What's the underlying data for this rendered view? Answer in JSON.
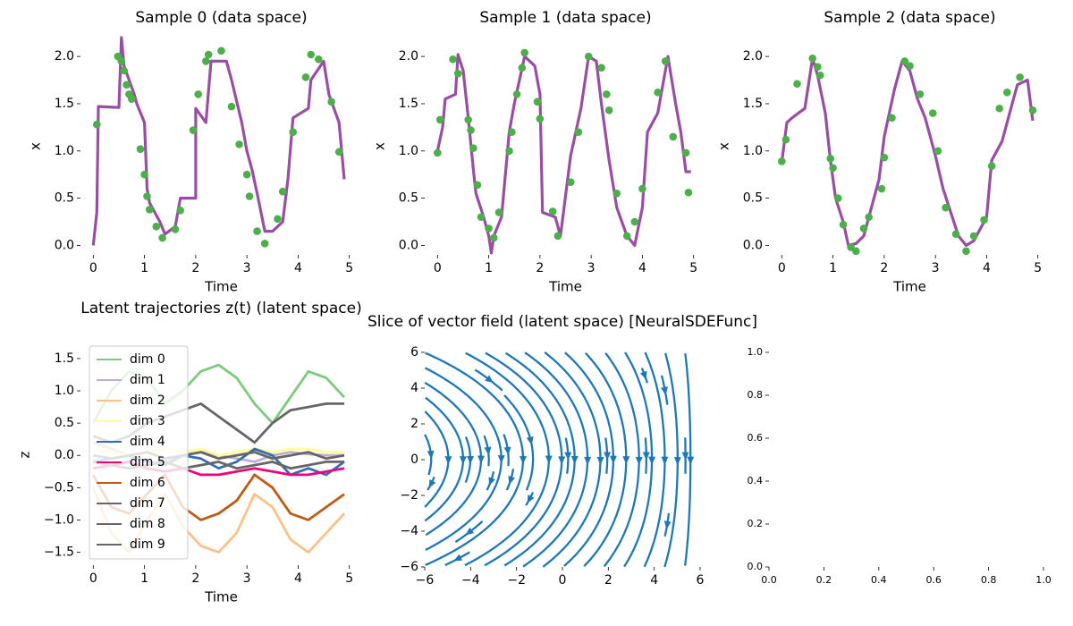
{
  "chart_data": [
    {
      "type": "line",
      "title": "Sample 0 (data space)",
      "xlabel": "Time",
      "ylabel": "x",
      "xlim": [
        -0.25,
        5.25
      ],
      "ylim": [
        -0.1,
        2.2
      ],
      "xticks": [
        0,
        1,
        2,
        3,
        4,
        5
      ],
      "yticks": [
        {
          "value": 0,
          "label": "0.0"
        },
        {
          "value": 0.5,
          "label": "0.5"
        },
        {
          "value": 1,
          "label": "1.0"
        },
        {
          "value": 1.5,
          "label": "1.5"
        },
        {
          "value": 2,
          "label": "2.0"
        }
      ],
      "series": [
        {
          "type": "line",
          "color": "#984ea3",
          "x": [
            0,
            0.07,
            0.1,
            0.5,
            0.55,
            0.6,
            0.7,
            0.8,
            0.85,
            1.0,
            1.05,
            1.1,
            1.3,
            1.4,
            1.6,
            1.7,
            1.8,
            2.0,
            2.0,
            2.2,
            2.3,
            2.6,
            2.7,
            2.9,
            3.0,
            3.1,
            3.2,
            3.35,
            3.5,
            3.7,
            3.8,
            3.9,
            4.2,
            4.25,
            4.5,
            4.6,
            4.8,
            4.9
          ],
          "values": [
            0,
            0.35,
            1.47,
            1.46,
            2.2,
            1.9,
            1.75,
            1.6,
            1.5,
            1.3,
            0.6,
            0.45,
            0.25,
            0.12,
            0.2,
            0.5,
            0.5,
            0.5,
            1.45,
            1.3,
            1.95,
            1.95,
            1.75,
            1.3,
            1.0,
            0.8,
            0.55,
            0.15,
            0.15,
            0.25,
            0.7,
            1.35,
            1.45,
            1.75,
            1.95,
            1.6,
            1.3,
            0.7
          ]
        },
        {
          "type": "scatter",
          "color": "#4daf4a",
          "x": [
            0.07,
            0.48,
            0.55,
            0.6,
            0.65,
            0.7,
            0.75,
            0.92,
            1.0,
            1.05,
            1.1,
            1.23,
            1.35,
            1.6,
            1.7,
            1.95,
            2.05,
            2.2,
            2.25,
            2.5,
            2.7,
            2.85,
            3.0,
            3.05,
            3.2,
            3.35,
            3.6,
            3.7,
            3.9,
            4.15,
            4.25,
            4.4,
            4.65,
            4.8
          ],
          "values": [
            1.28,
            2.0,
            1.95,
            1.85,
            1.7,
            1.6,
            1.55,
            1.02,
            0.75,
            0.52,
            0.38,
            0.2,
            0.08,
            0.17,
            0.37,
            1.22,
            1.6,
            1.95,
            2.02,
            2.06,
            1.47,
            1.07,
            0.75,
            0.52,
            0.15,
            0.02,
            0.28,
            0.57,
            1.2,
            1.78,
            2.02,
            1.97,
            1.52,
            0.99
          ]
        }
      ]
    },
    {
      "type": "line",
      "title": "Sample 1 (data space)",
      "xlabel": "Time",
      "ylabel": "x",
      "xlim": [
        -0.25,
        5.25
      ],
      "ylim": [
        -0.1,
        2.2
      ],
      "xticks": [
        0,
        1,
        2,
        3,
        4,
        5
      ],
      "yticks": [
        {
          "value": 0,
          "label": "0.0"
        },
        {
          "value": 0.5,
          "label": "0.5"
        },
        {
          "value": 1,
          "label": "1.0"
        },
        {
          "value": 1.5,
          "label": "1.5"
        },
        {
          "value": 2,
          "label": "2.0"
        }
      ],
      "series": [
        {
          "type": "line",
          "color": "#984ea3",
          "x": [
            0,
            0.1,
            0.15,
            0.35,
            0.4,
            0.5,
            0.6,
            0.7,
            0.75,
            0.9,
            1.0,
            1.05,
            1.1,
            1.25,
            1.4,
            1.5,
            1.7,
            1.9,
            2.0,
            2.05,
            2.3,
            2.4,
            2.6,
            2.8,
            2.95,
            3.1,
            3.2,
            3.35,
            3.5,
            3.7,
            3.85,
            4.0,
            4.1,
            4.3,
            4.5,
            4.65,
            4.75,
            4.85,
            4.95
          ],
          "values": [
            1.0,
            1.25,
            1.55,
            1.6,
            2.02,
            1.85,
            1.35,
            0.8,
            0.55,
            0.3,
            0.1,
            -0.08,
            0.1,
            0.3,
            1.2,
            1.5,
            2.0,
            1.9,
            1.6,
            0.35,
            0.3,
            0.1,
            0.95,
            1.45,
            2.0,
            1.95,
            1.5,
            0.9,
            0.4,
            0.1,
            0.0,
            0.4,
            1.2,
            1.4,
            2.0,
            1.5,
            1.2,
            0.78,
            0.78
          ]
        },
        {
          "type": "scatter",
          "color": "#4daf4a",
          "x": [
            0.0,
            0.05,
            0.3,
            0.4,
            0.6,
            0.65,
            0.7,
            0.78,
            0.85,
            1.0,
            1.1,
            1.2,
            1.4,
            1.45,
            1.55,
            1.65,
            1.7,
            1.95,
            2.0,
            2.25,
            2.35,
            2.6,
            2.75,
            2.95,
            3.2,
            3.3,
            3.35,
            3.5,
            3.7,
            3.85,
            4.0,
            4.3,
            4.45,
            4.6,
            4.85,
            4.9
          ],
          "values": [
            0.98,
            1.33,
            1.97,
            1.82,
            1.33,
            1.22,
            1.03,
            0.64,
            0.3,
            0.18,
            0.08,
            0.35,
            1.0,
            1.2,
            1.6,
            1.88,
            2.04,
            1.52,
            1.34,
            0.36,
            0.1,
            0.67,
            1.2,
            2.0,
            1.88,
            1.6,
            1.43,
            0.55,
            0.1,
            0.25,
            0.6,
            1.62,
            1.95,
            1.15,
            0.98,
            0.56
          ]
        }
      ]
    },
    {
      "type": "line",
      "title": "Sample 2 (data space)",
      "xlabel": "Time",
      "ylabel": "x",
      "xlim": [
        -0.25,
        5.25
      ],
      "ylim": [
        -0.1,
        2.2
      ],
      "xticks": [
        0,
        1,
        2,
        3,
        4,
        5
      ],
      "yticks": [
        {
          "value": 0,
          "label": "0.0"
        },
        {
          "value": 0.5,
          "label": "0.5"
        },
        {
          "value": 1,
          "label": "1.0"
        },
        {
          "value": 1.5,
          "label": "1.5"
        },
        {
          "value": 2,
          "label": "2.0"
        }
      ],
      "series": [
        {
          "type": "line",
          "color": "#984ea3",
          "x": [
            0,
            0.1,
            0.2,
            0.45,
            0.6,
            0.7,
            0.85,
            0.95,
            1.05,
            1.2,
            1.3,
            1.45,
            1.6,
            1.7,
            1.9,
            2.0,
            2.2,
            2.35,
            2.5,
            2.65,
            2.8,
            3.0,
            3.15,
            3.3,
            3.45,
            3.6,
            3.75,
            4.0,
            4.1,
            4.3,
            4.5,
            4.6,
            4.8,
            4.9
          ],
          "values": [
            0.88,
            1.3,
            1.35,
            1.45,
            1.98,
            1.8,
            1.4,
            0.9,
            0.5,
            0.25,
            0.0,
            0.02,
            0.1,
            0.3,
            0.7,
            1.15,
            1.65,
            1.95,
            1.85,
            1.55,
            1.35,
            0.95,
            0.6,
            0.35,
            0.1,
            0.0,
            0.05,
            0.3,
            0.9,
            1.1,
            1.5,
            1.7,
            1.75,
            1.32
          ]
        },
        {
          "type": "scatter",
          "color": "#4daf4a",
          "x": [
            0.0,
            0.08,
            0.3,
            0.6,
            0.7,
            0.75,
            0.95,
            1.0,
            1.1,
            1.2,
            1.35,
            1.45,
            1.6,
            1.7,
            1.95,
            2.0,
            2.15,
            2.4,
            2.5,
            2.7,
            2.95,
            3.05,
            3.2,
            3.4,
            3.6,
            3.75,
            3.95,
            4.1,
            4.25,
            4.4,
            4.65,
            4.9
          ],
          "values": [
            0.89,
            1.12,
            1.71,
            1.98,
            1.89,
            1.8,
            0.92,
            0.82,
            0.5,
            0.22,
            -0.02,
            -0.06,
            0.18,
            0.3,
            0.6,
            0.93,
            1.35,
            1.95,
            1.9,
            1.6,
            1.4,
            1.0,
            0.4,
            0.12,
            -0.06,
            0.1,
            0.27,
            0.84,
            1.45,
            1.62,
            1.78,
            1.43
          ]
        }
      ]
    },
    {
      "type": "line",
      "title": "Latent trajectories z(t) (latent space)",
      "xlabel": "Time",
      "ylabel": "z",
      "xlim": [
        -0.25,
        5.25
      ],
      "ylim": [
        -1.7,
        1.72
      ],
      "xticks": [
        0,
        1,
        2,
        3,
        4,
        5
      ],
      "yticks": [
        {
          "value": -1.5,
          "label": "−1.5"
        },
        {
          "value": -1,
          "label": "−1.0"
        },
        {
          "value": -0.5,
          "label": "−0.5"
        },
        {
          "value": 0,
          "label": "0.0"
        },
        {
          "value": 0.5,
          "label": "0.5"
        },
        {
          "value": 1,
          "label": "1.0"
        },
        {
          "value": 1.5,
          "label": "1.5"
        }
      ],
      "legend": "upper left",
      "x": [
        0,
        0.35,
        0.7,
        1.05,
        1.4,
        1.75,
        2.1,
        2.45,
        2.8,
        3.15,
        3.5,
        3.85,
        4.2,
        4.55,
        4.9
      ],
      "series": [
        {
          "name": "dim 0",
          "color": "#7fc97f",
          "values": [
            0.5,
            1.0,
            1.3,
            1.2,
            0.8,
            1.0,
            1.3,
            1.4,
            1.2,
            0.8,
            0.5,
            0.9,
            1.3,
            1.2,
            0.9
          ]
        },
        {
          "name": "dim 1",
          "color": "#beaed4",
          "values": [
            0.2,
            0.1,
            0.0,
            -0.1,
            -0.1,
            0,
            0.05,
            0,
            -0.05,
            -0.1,
            0,
            0.05,
            0.02,
            0,
            0
          ]
        },
        {
          "name": "dim 2",
          "color": "#fdc086",
          "values": [
            -0.5,
            -1.2,
            -1.5,
            -1.0,
            -0.6,
            -1.1,
            -1.4,
            -1.5,
            -1.2,
            -0.6,
            -0.8,
            -1.3,
            -1.5,
            -1.2,
            -0.9
          ]
        },
        {
          "name": "dim 3",
          "color": "#ffff99",
          "values": [
            0.1,
            0.05,
            0,
            0,
            0.1,
            0.05,
            0.1,
            0,
            0.05,
            0.1,
            0.05,
            0.1,
            0.1,
            0.05,
            0.05
          ]
        },
        {
          "name": "dim 4",
          "color": "#386cb0",
          "values": [
            -0.1,
            -0.05,
            0,
            -0.1,
            -0.15,
            0,
            -0.05,
            -0.2,
            -0.1,
            0.1,
            0,
            -0.3,
            -0.2,
            -0.3,
            -0.1
          ]
        },
        {
          "name": "dim 5",
          "color": "#f0027f",
          "values": [
            -0.2,
            -0.15,
            -0.1,
            -0.2,
            -0.25,
            -0.2,
            -0.3,
            -0.3,
            -0.25,
            -0.2,
            -0.25,
            -0.3,
            -0.3,
            -0.25,
            -0.2
          ]
        },
        {
          "name": "dim 6",
          "color": "#bf5b17",
          "values": [
            -0.3,
            -0.8,
            -0.9,
            -0.6,
            -0.3,
            -0.8,
            -1.0,
            -0.9,
            -0.7,
            -0.3,
            -0.5,
            -0.9,
            -1.0,
            -0.8,
            -0.6
          ]
        },
        {
          "name": "dim 7",
          "color": "#666666",
          "values": [
            0.3,
            0.2,
            0.3,
            0.5,
            0.6,
            0.7,
            0.8,
            0.6,
            0.4,
            0.2,
            0.5,
            0.7,
            0.75,
            0.8,
            0.8
          ]
        },
        {
          "name": "dim 8",
          "color": "#666666",
          "values": [
            -0.1,
            -0.15,
            -0.2,
            -0.15,
            -0.1,
            -0.2,
            -0.15,
            -0.1,
            -0.2,
            -0.15,
            -0.1,
            -0.2,
            -0.15,
            -0.1,
            -0.1
          ]
        },
        {
          "name": "dim 9",
          "color": "#666666",
          "values": [
            0,
            -0.05,
            0,
            0.05,
            -0.05,
            0,
            0.05,
            -0.05,
            0,
            0.05,
            -0.05,
            0,
            0.05,
            -0.05,
            0
          ]
        }
      ]
    },
    {
      "type": "streamplot",
      "title": "Slice of vector field (latent space) [NeuralSDEFunc]",
      "color": "#1f77b4",
      "xlim": [
        -6,
        6
      ],
      "ylim": [
        -6,
        6
      ],
      "xticks": [
        {
          "value": -6,
          "label": "−6"
        },
        {
          "value": -4,
          "label": "−4"
        },
        {
          "value": -2,
          "label": "−2"
        },
        0,
        2,
        4,
        6
      ],
      "yticks": [
        {
          "value": -6,
          "label": "−6"
        },
        {
          "value": -4,
          "label": "−4"
        },
        {
          "value": -2,
          "label": "−2"
        },
        0,
        2,
        4,
        6
      ],
      "x": [
        -6,
        -3,
        0,
        3,
        6
      ],
      "y": [
        -6,
        -3,
        0,
        3,
        6
      ],
      "u": [
        [
          -1.8,
          -1.35,
          -0.9,
          -0.45,
          0
        ],
        [
          -0.9,
          -0.675,
          -0.45,
          -0.225,
          0
        ],
        [
          0,
          0,
          0,
          0,
          0
        ],
        [
          0.9,
          0.675,
          0.45,
          0.225,
          0
        ],
        [
          1.8,
          1.35,
          0.9,
          0.45,
          0
        ]
      ],
      "v": [
        [
          -1,
          -1,
          -1,
          -1,
          -1
        ],
        [
          -1,
          -1,
          -1,
          -1,
          -1
        ],
        [
          -1,
          -1,
          -1,
          -1,
          -1
        ],
        [
          -1,
          -1,
          -1,
          -1,
          -1
        ],
        [
          -1,
          -1,
          -1,
          -1,
          -1
        ]
      ]
    },
    {
      "type": "empty",
      "xlim": [
        0,
        1
      ],
      "ylim": [
        0,
        1
      ],
      "xticks": [
        {
          "value": 0,
          "label": "0.0"
        },
        {
          "value": 0.2,
          "label": "0.2"
        },
        {
          "value": 0.4,
          "label": "0.4"
        },
        {
          "value": 0.6,
          "label": "0.6"
        },
        {
          "value": 0.8,
          "label": "0.8"
        },
        {
          "value": 1,
          "label": "1.0"
        }
      ],
      "yticks": [
        {
          "value": 0,
          "label": "0.0"
        },
        {
          "value": 0.2,
          "label": "0.2"
        },
        {
          "value": 0.4,
          "label": "0.4"
        },
        {
          "value": 0.6,
          "label": "0.6"
        },
        {
          "value": 0.8,
          "label": "0.8"
        },
        {
          "value": 1,
          "label": "1.0"
        }
      ]
    }
  ]
}
